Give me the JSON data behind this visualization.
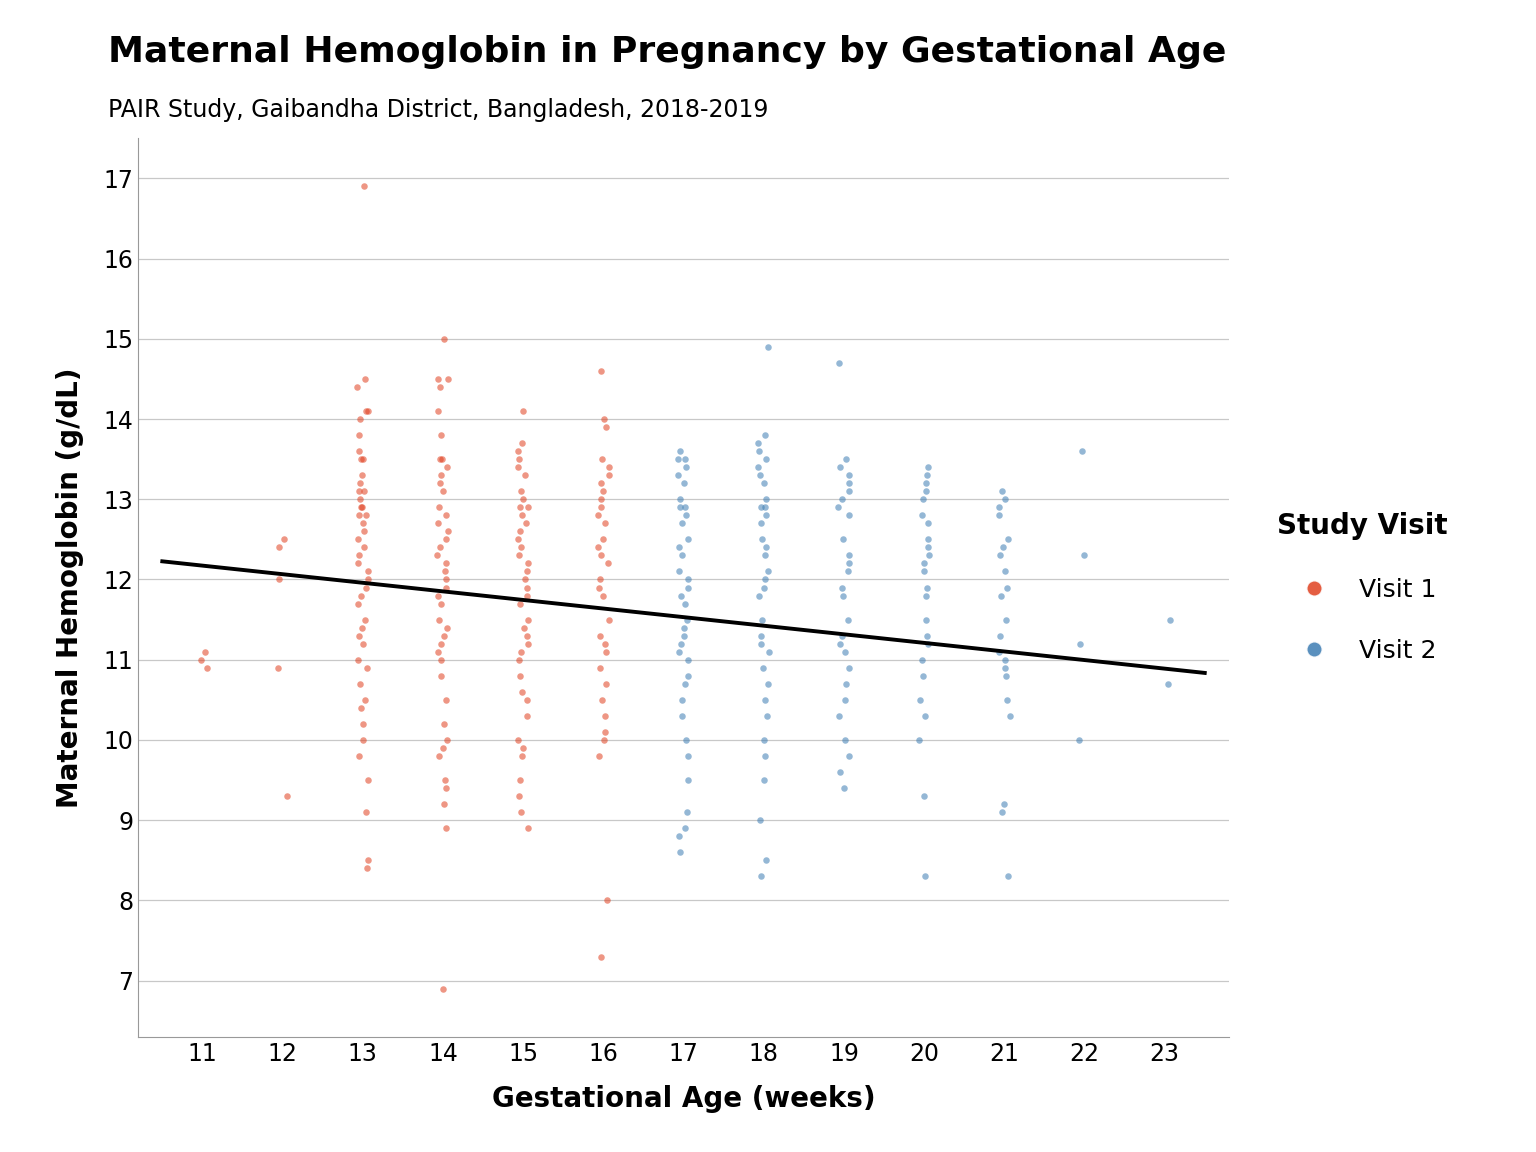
{
  "title": "Maternal Hemoglobin in Pregnancy by Gestational Age",
  "subtitle": "PAIR Study, Gaibandha District, Bangladesh, 2018-2019",
  "xlabel": "Gestational Age (weeks)",
  "ylabel": "Maternal Hemoglobin (g/dL)",
  "xlim": [
    10.2,
    23.8
  ],
  "ylim": [
    6.3,
    17.5
  ],
  "xticks": [
    11,
    12,
    13,
    14,
    15,
    16,
    17,
    18,
    19,
    20,
    21,
    22,
    23
  ],
  "yticks": [
    7,
    8,
    9,
    10,
    11,
    12,
    13,
    14,
    15,
    16,
    17
  ],
  "visit1_color": "#E04020",
  "visit2_color": "#3D7DB3",
  "line_color": "#000000",
  "background_color": "#FFFFFF",
  "grid_color": "#C8C8C8",
  "legend_title": "Study Visit",
  "legend_labels": [
    "Visit 1",
    "Visit 2"
  ],
  "point_alpha": 0.55,
  "point_size": 22,
  "line_intercept": 13.35,
  "line_slope": -0.107,
  "seed": 42,
  "jitter_scale": 0.07,
  "visit1_data": {
    "11": [
      11.0,
      10.9,
      11.1
    ],
    "12": [
      12.5,
      12.4,
      12.0,
      10.9,
      9.3
    ],
    "13": [
      16.9,
      14.5,
      14.4,
      14.1,
      14.1,
      14.0,
      13.8,
      13.6,
      13.5,
      13.5,
      13.3,
      13.2,
      13.1,
      13.1,
      13.0,
      12.9,
      12.9,
      12.8,
      12.8,
      12.7,
      12.6,
      12.5,
      12.4,
      12.3,
      12.2,
      12.1,
      12.0,
      11.9,
      11.8,
      11.7,
      11.5,
      11.4,
      11.3,
      11.2,
      11.0,
      10.9,
      10.7,
      10.5,
      10.4,
      10.2,
      10.0,
      9.8,
      9.5,
      9.1,
      8.5,
      8.4
    ],
    "14": [
      15.0,
      14.5,
      14.5,
      14.4,
      14.1,
      13.8,
      13.5,
      13.5,
      13.4,
      13.3,
      13.2,
      13.1,
      12.9,
      12.8,
      12.7,
      12.6,
      12.5,
      12.4,
      12.3,
      12.2,
      12.1,
      12.0,
      11.9,
      11.8,
      11.7,
      11.5,
      11.4,
      11.3,
      11.2,
      11.1,
      11.0,
      10.8,
      10.5,
      10.2,
      10.0,
      9.9,
      9.8,
      9.5,
      9.4,
      9.2,
      8.9,
      6.9
    ],
    "15": [
      14.1,
      13.7,
      13.6,
      13.5,
      13.4,
      13.3,
      13.1,
      13.0,
      12.9,
      12.9,
      12.8,
      12.7,
      12.6,
      12.5,
      12.4,
      12.3,
      12.2,
      12.1,
      12.0,
      11.9,
      11.8,
      11.7,
      11.5,
      11.4,
      11.3,
      11.2,
      11.1,
      11.0,
      10.8,
      10.6,
      10.5,
      10.3,
      10.0,
      9.9,
      9.8,
      9.5,
      9.3,
      9.1,
      8.9
    ],
    "16": [
      14.6,
      14.0,
      13.9,
      13.5,
      13.4,
      13.3,
      13.2,
      13.1,
      13.0,
      12.9,
      12.8,
      12.7,
      12.5,
      12.4,
      12.3,
      12.2,
      12.0,
      11.9,
      11.8,
      11.5,
      11.3,
      11.2,
      11.1,
      10.9,
      10.7,
      10.5,
      10.3,
      10.1,
      10.0,
      9.8,
      8.0,
      7.3
    ]
  },
  "visit2_data": {
    "17": [
      13.6,
      13.5,
      13.5,
      13.4,
      13.3,
      13.2,
      13.0,
      12.9,
      12.9,
      12.8,
      12.7,
      12.5,
      12.4,
      12.3,
      12.1,
      12.0,
      11.9,
      11.8,
      11.7,
      11.5,
      11.4,
      11.3,
      11.2,
      11.1,
      11.0,
      10.8,
      10.7,
      10.5,
      10.3,
      10.0,
      9.8,
      9.5,
      9.1,
      8.9,
      8.8,
      8.6
    ],
    "18": [
      14.9,
      13.8,
      13.7,
      13.6,
      13.5,
      13.4,
      13.3,
      13.2,
      13.0,
      12.9,
      12.9,
      12.8,
      12.7,
      12.5,
      12.4,
      12.3,
      12.1,
      12.0,
      11.9,
      11.8,
      11.5,
      11.3,
      11.2,
      11.1,
      10.9,
      10.7,
      10.5,
      10.3,
      10.0,
      9.8,
      9.5,
      9.0,
      8.5,
      8.3
    ],
    "19": [
      14.7,
      13.5,
      13.4,
      13.3,
      13.2,
      13.1,
      13.0,
      12.9,
      12.8,
      12.5,
      12.3,
      12.2,
      12.1,
      11.9,
      11.8,
      11.5,
      11.3,
      11.2,
      11.1,
      10.9,
      10.7,
      10.5,
      10.3,
      10.0,
      9.8,
      9.6,
      9.4
    ],
    "20": [
      13.4,
      13.3,
      13.2,
      13.1,
      13.0,
      12.8,
      12.7,
      12.5,
      12.4,
      12.3,
      12.2,
      12.1,
      11.9,
      11.8,
      11.5,
      11.3,
      11.2,
      11.0,
      10.8,
      10.5,
      10.3,
      10.0,
      9.3,
      8.3
    ],
    "21": [
      13.1,
      13.0,
      12.9,
      12.8,
      12.5,
      12.4,
      12.3,
      12.1,
      11.9,
      11.8,
      11.5,
      11.3,
      11.1,
      11.0,
      10.9,
      10.8,
      10.5,
      10.3,
      9.2,
      9.1,
      8.3
    ],
    "22": [
      13.6,
      12.3,
      11.2,
      10.0
    ],
    "23": [
      11.5,
      10.7
    ]
  }
}
